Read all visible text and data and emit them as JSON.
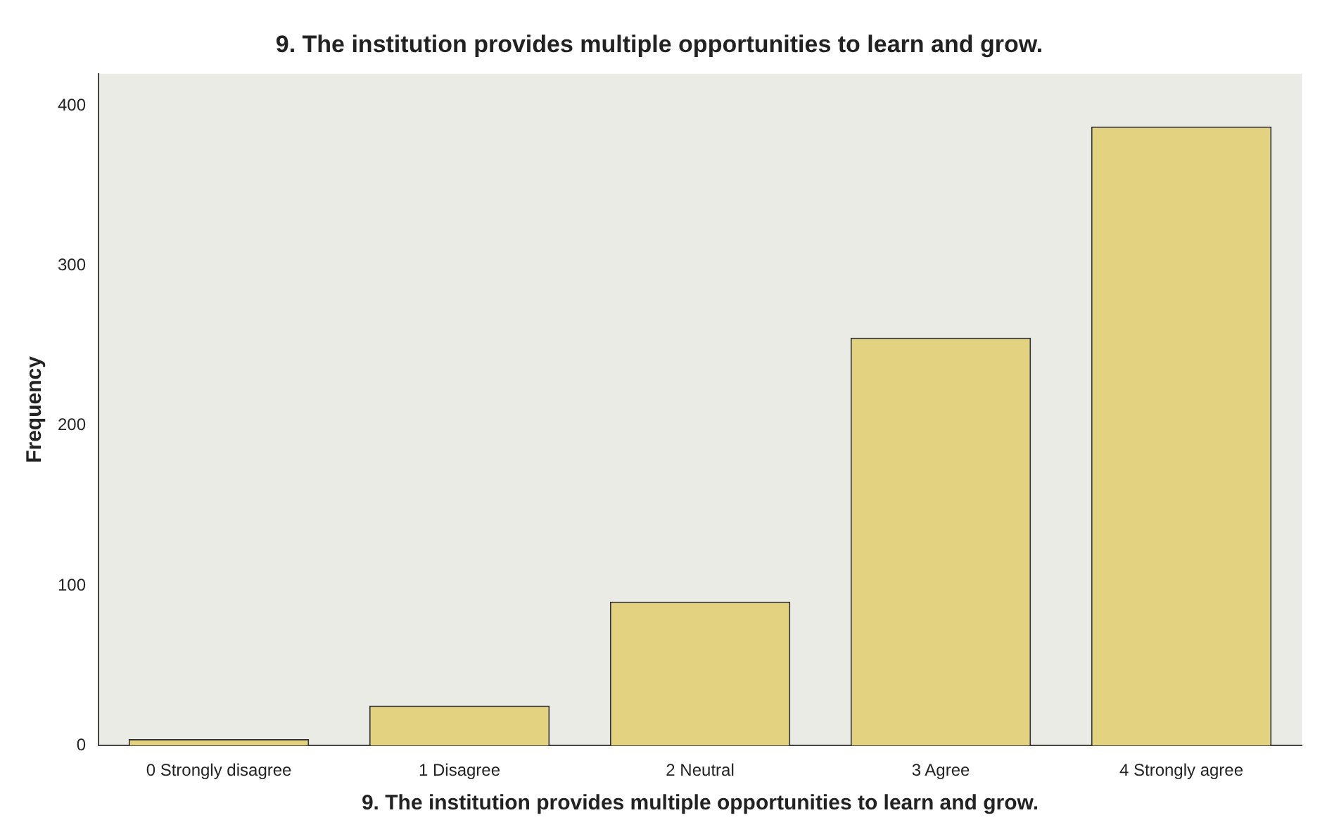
{
  "chart_data": {
    "type": "bar",
    "title": "9. The institution provides multiple opportunities to learn and grow.",
    "xlabel": "9. The institution provides multiple opportunities to learn and grow.",
    "ylabel": "Frequency",
    "categories": [
      "0 Strongly disagree",
      "1 Disagree",
      "2 Neutral",
      "3 Agree",
      "4 Strongly agree"
    ],
    "values": [
      4,
      25,
      90,
      255,
      387
    ],
    "color": "#e3d27f",
    "ylim": [
      0,
      420
    ],
    "yticks": [
      0,
      100,
      200,
      300,
      400
    ],
    "grid": false,
    "legend": false
  }
}
